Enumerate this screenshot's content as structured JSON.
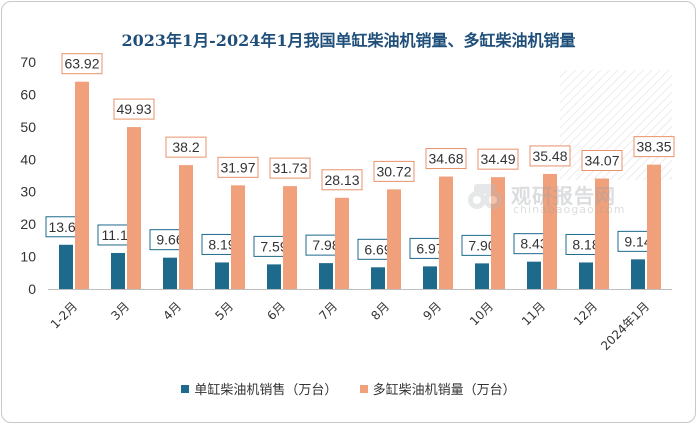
{
  "chart_data": {
    "type": "bar",
    "title": "2023年1月-2024年1月我国单缸柴油机销量、多缸柴油机销量",
    "categories": [
      "1-2月",
      "3月",
      "4月",
      "5月",
      "6月",
      "7月",
      "8月",
      "9月",
      "10月",
      "11月",
      "12月",
      "2024年1月"
    ],
    "series": [
      {
        "name": "单缸柴油机销售（万台）",
        "color": "#1d6a8c",
        "values": [
          13.64,
          11.11,
          9.66,
          8.19,
          7.59,
          7.98,
          6.69,
          6.97,
          7.9,
          8.43,
          8.18,
          9.14
        ],
        "labels": [
          "13.64",
          "11.11",
          "9.66",
          "8.19",
          "7.59",
          "7.98",
          "6.69",
          "6.97",
          "7.90",
          "8.43",
          "8.18",
          "9.14"
        ]
      },
      {
        "name": "多缸柴油机销量（万台）",
        "color": "#f0a07b",
        "values": [
          63.92,
          49.93,
          38.2,
          31.97,
          31.73,
          28.13,
          30.72,
          34.68,
          34.49,
          35.48,
          34.07,
          38.35
        ],
        "labels": [
          "63.92",
          "49.93",
          "38.2",
          "31.97",
          "31.73",
          "28.13",
          "30.72",
          "34.68",
          "34.49",
          "35.48",
          "34.07",
          "38.35"
        ]
      }
    ],
    "ylim": [
      0,
      70
    ],
    "yticks": [
      0,
      10,
      20,
      30,
      40,
      50,
      60,
      70
    ],
    "legend_position": "bottom",
    "grid": false
  },
  "watermark": {
    "text": "观研报告网",
    "subtext": "chinabaogao.com",
    "icon": "binoculars-logo"
  }
}
